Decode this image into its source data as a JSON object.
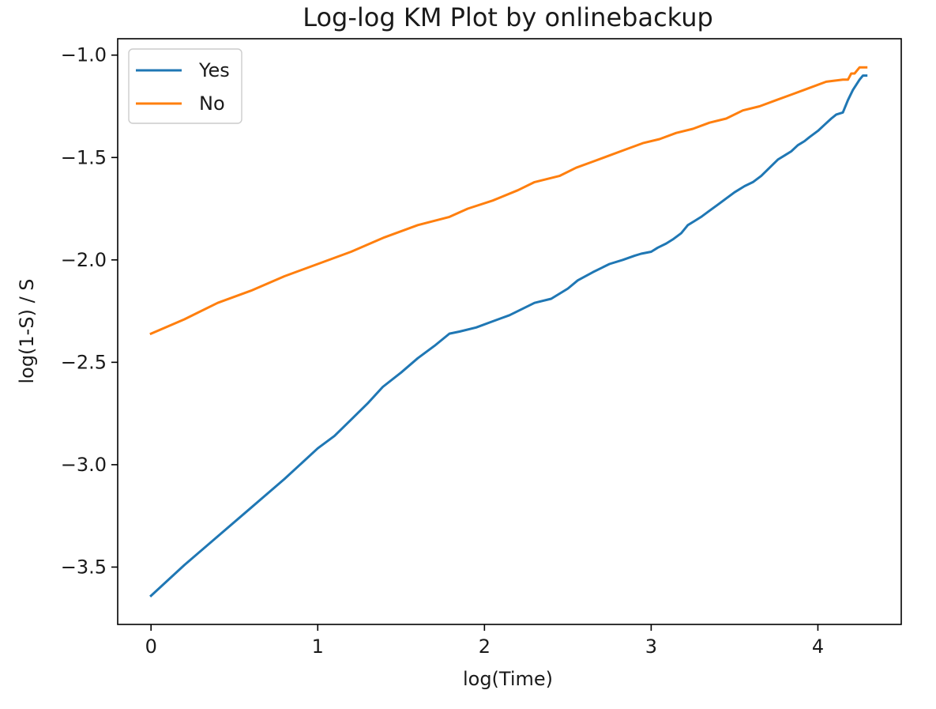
{
  "chart_data": {
    "type": "line",
    "title": "Log-log KM Plot by onlinebackup",
    "xlabel": "log(Time)",
    "ylabel": "log(1-S) / S",
    "xlim": [
      -0.2,
      4.5
    ],
    "ylim": [
      -3.78,
      -0.92
    ],
    "xticks": [
      0,
      1,
      2,
      3,
      4
    ],
    "xtick_labels": [
      "0",
      "1",
      "2",
      "3",
      "4"
    ],
    "yticks": [
      -3.5,
      -3.0,
      -2.5,
      -2.0,
      -1.5,
      -1.0
    ],
    "ytick_labels": [
      "−3.5",
      "−3.0",
      "−2.5",
      "−2.0",
      "−1.5",
      "−1.0"
    ],
    "grid": false,
    "legend": "top-left",
    "series": [
      {
        "name": "Yes",
        "color": "#1f77b4",
        "x": [
          0,
          0.2,
          0.4,
          0.6,
          0.8,
          1.0,
          1.1,
          1.2,
          1.3,
          1.39,
          1.5,
          1.6,
          1.7,
          1.79,
          1.85,
          1.95,
          2.05,
          2.15,
          2.3,
          2.4,
          2.5,
          2.56,
          2.65,
          2.75,
          2.83,
          2.9,
          2.94,
          3.0,
          3.04,
          3.09,
          3.13,
          3.18,
          3.22,
          3.26,
          3.3,
          3.35,
          3.4,
          3.45,
          3.5,
          3.56,
          3.61,
          3.66,
          3.71,
          3.76,
          3.8,
          3.84,
          3.88,
          3.92,
          3.95,
          4.0,
          4.04,
          4.08,
          4.11,
          4.15,
          4.18,
          4.21,
          4.25,
          4.27,
          4.29
        ],
        "y": [
          -3.64,
          -3.49,
          -3.35,
          -3.21,
          -3.07,
          -2.92,
          -2.86,
          -2.78,
          -2.7,
          -2.62,
          -2.55,
          -2.48,
          -2.42,
          -2.36,
          -2.35,
          -2.33,
          -2.3,
          -2.27,
          -2.21,
          -2.19,
          -2.14,
          -2.1,
          -2.06,
          -2.02,
          -2.0,
          -1.98,
          -1.97,
          -1.96,
          -1.94,
          -1.92,
          -1.9,
          -1.87,
          -1.83,
          -1.81,
          -1.79,
          -1.76,
          -1.73,
          -1.7,
          -1.67,
          -1.64,
          -1.62,
          -1.59,
          -1.55,
          -1.51,
          -1.49,
          -1.47,
          -1.44,
          -1.42,
          -1.4,
          -1.37,
          -1.34,
          -1.31,
          -1.29,
          -1.28,
          -1.22,
          -1.17,
          -1.12,
          -1.1,
          -1.1
        ]
      },
      {
        "name": "No",
        "color": "#ff7f0e",
        "x": [
          0,
          0.2,
          0.4,
          0.6,
          0.8,
          1.0,
          1.2,
          1.4,
          1.6,
          1.79,
          1.9,
          2.05,
          2.2,
          2.3,
          2.45,
          2.55,
          2.65,
          2.75,
          2.85,
          2.95,
          3.05,
          3.15,
          3.25,
          3.35,
          3.45,
          3.55,
          3.65,
          3.75,
          3.85,
          3.95,
          4.05,
          4.15,
          4.18,
          4.2,
          4.22,
          4.25,
          4.29
        ],
        "y": [
          -2.36,
          -2.29,
          -2.21,
          -2.15,
          -2.08,
          -2.02,
          -1.96,
          -1.89,
          -1.83,
          -1.79,
          -1.75,
          -1.71,
          -1.66,
          -1.62,
          -1.59,
          -1.55,
          -1.52,
          -1.49,
          -1.46,
          -1.43,
          -1.41,
          -1.38,
          -1.36,
          -1.33,
          -1.31,
          -1.27,
          -1.25,
          -1.22,
          -1.19,
          -1.16,
          -1.13,
          -1.12,
          -1.12,
          -1.09,
          -1.09,
          -1.06,
          -1.06
        ]
      }
    ]
  }
}
